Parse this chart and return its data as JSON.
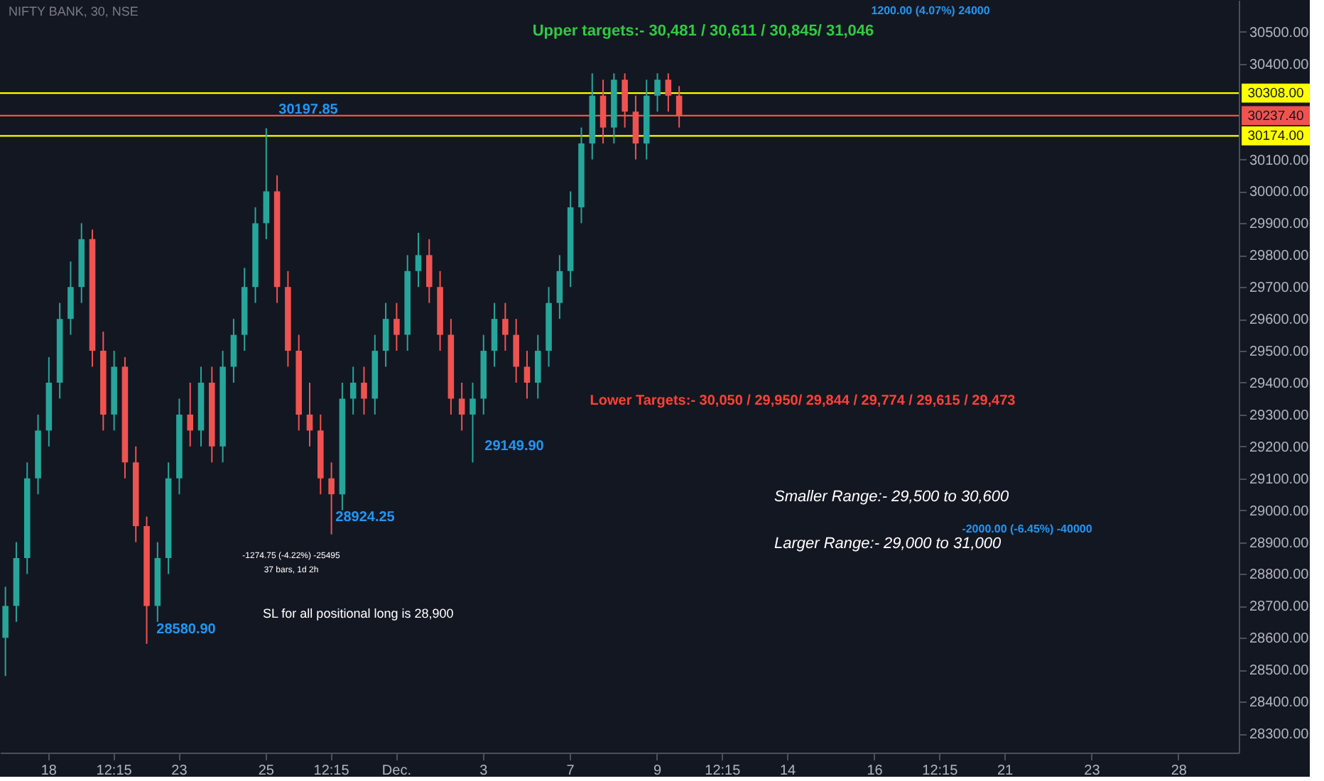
{
  "chart_data": {
    "type": "candlestick",
    "title": "NIFTY BANK, 30, NSE",
    "categories": [
      null,
      null,
      null,
      null,
      "18",
      null,
      null,
      null,
      null,
      null,
      "12:15",
      null,
      null,
      null,
      null,
      null,
      "23",
      null,
      null,
      null,
      null,
      null,
      null,
      null,
      "25",
      null,
      null,
      null,
      null,
      null,
      "12:15",
      null,
      null,
      null,
      null,
      null,
      "Dec.",
      null,
      null,
      null,
      null,
      null,
      null,
      null,
      "3",
      null,
      null,
      null,
      null,
      null,
      null,
      null,
      "7",
      null,
      null,
      null,
      null,
      null,
      null,
      null,
      "9",
      null,
      null,
      null,
      null,
      null,
      "12:15",
      null,
      null,
      null,
      null,
      null,
      "14",
      null,
      null,
      null,
      null,
      null,
      null,
      null,
      "16",
      null,
      null,
      null,
      null,
      null,
      "12:15",
      null,
      null,
      null,
      null,
      null,
      "21",
      null,
      null,
      null,
      null,
      null,
      null,
      null,
      "23",
      null,
      null,
      null,
      null,
      null,
      null,
      null,
      "28",
      null,
      null,
      null,
      null,
      null
    ],
    "ohlc": [
      [
        28600,
        28760,
        28480,
        28700
      ],
      [
        28700,
        28900,
        28650,
        28850
      ],
      [
        28850,
        29150,
        28800,
        29100
      ],
      [
        29100,
        29300,
        29050,
        29250
      ],
      [
        29250,
        29480,
        29200,
        29400
      ],
      [
        29400,
        29650,
        29350,
        29600
      ],
      [
        29600,
        29780,
        29550,
        29700
      ],
      [
        29700,
        29900,
        29650,
        29850
      ],
      [
        29850,
        29880,
        29450,
        29500
      ],
      [
        29500,
        29560,
        29250,
        29300
      ],
      [
        29300,
        29500,
        29250,
        29450
      ],
      [
        29450,
        29480,
        29100,
        29150
      ],
      [
        29150,
        29200,
        28900,
        28950
      ],
      [
        28950,
        28980,
        28580.9,
        28700
      ],
      [
        28700,
        28900,
        28650,
        28850
      ],
      [
        28850,
        29150,
        28800,
        29100
      ],
      [
        29100,
        29350,
        29050,
        29300
      ],
      [
        29300,
        29400,
        29200,
        29250
      ],
      [
        29250,
        29450,
        29200,
        29400
      ],
      [
        29400,
        29450,
        29150,
        29200
      ],
      [
        29200,
        29500,
        29150,
        29450
      ],
      [
        29450,
        29600,
        29400,
        29550
      ],
      [
        29550,
        29760,
        29500,
        29700
      ],
      [
        29700,
        29950,
        29650,
        29900
      ],
      [
        29900,
        30197.85,
        29850,
        30000
      ],
      [
        30000,
        30050,
        29650,
        29700
      ],
      [
        29700,
        29750,
        29450,
        29500
      ],
      [
        29500,
        29550,
        29250,
        29300
      ],
      [
        29300,
        29400,
        29200,
        29250
      ],
      [
        29250,
        29300,
        29050,
        29100
      ],
      [
        29100,
        29150,
        28924.25,
        29050
      ],
      [
        29050,
        29400,
        29000,
        29350
      ],
      [
        29350,
        29450,
        29300,
        29400
      ],
      [
        29400,
        29450,
        29300,
        29350
      ],
      [
        29350,
        29550,
        29300,
        29500
      ],
      [
        29500,
        29650,
        29450,
        29600
      ],
      [
        29600,
        29650,
        29500,
        29550
      ],
      [
        29550,
        29800,
        29500,
        29750
      ],
      [
        29750,
        29870,
        29700,
        29800
      ],
      [
        29800,
        29850,
        29650,
        29700
      ],
      [
        29700,
        29750,
        29500,
        29550
      ],
      [
        29550,
        29600,
        29300,
        29350
      ],
      [
        29350,
        29400,
        29250,
        29300
      ],
      [
        29300,
        29400,
        29149.9,
        29350
      ],
      [
        29350,
        29550,
        29300,
        29500
      ],
      [
        29500,
        29650,
        29450,
        29600
      ],
      [
        29600,
        29650,
        29500,
        29550
      ],
      [
        29550,
        29600,
        29400,
        29450
      ],
      [
        29450,
        29500,
        29350,
        29400
      ],
      [
        29400,
        29550,
        29350,
        29500
      ],
      [
        29500,
        29700,
        29450,
        29650
      ],
      [
        29650,
        29800,
        29600,
        29750
      ],
      [
        29750,
        30000,
        29700,
        29950
      ],
      [
        29950,
        30200,
        29900,
        30150
      ],
      [
        30150,
        30370,
        30100,
        30300
      ],
      [
        30300,
        30350,
        30150,
        30200
      ],
      [
        30200,
        30370,
        30150,
        30350
      ],
      [
        30350,
        30370,
        30200,
        30250
      ],
      [
        30250,
        30300,
        30100,
        30150
      ],
      [
        30150,
        30350,
        30100,
        30300
      ],
      [
        30300,
        30370,
        30250,
        30350
      ],
      [
        30350,
        30370,
        30250,
        30300
      ],
      [
        30300,
        30330,
        30200,
        30237.4
      ],
      null,
      null,
      null,
      null,
      null,
      null,
      null,
      null,
      null,
      null,
      null,
      null,
      null,
      null,
      null,
      null,
      null,
      null,
      null,
      null,
      null,
      null,
      null,
      null,
      null,
      null,
      null,
      null,
      null,
      null,
      null,
      null,
      null,
      null,
      null,
      null,
      null,
      null,
      null,
      null,
      null,
      null,
      null,
      null,
      null,
      null,
      null,
      null,
      null,
      null,
      null
    ],
    "colors": [
      "#26a69a",
      "#26a69a",
      "#26a69a",
      "#26a69a",
      "#26a69a",
      "#26a69a",
      "#26a69a",
      "#26a69a",
      "#ef5350",
      "#ef5350",
      "#26a69a",
      "#ef5350",
      "#ef5350",
      "#ef5350",
      "#26a69a",
      "#26a69a",
      "#26a69a",
      "#ef5350",
      "#26a69a",
      "#ef5350",
      "#26a69a",
      "#26a69a",
      "#26a69a",
      "#26a69a",
      "#26a69a",
      "#ef5350",
      "#ef5350",
      "#ef5350",
      "#ef5350",
      "#ef5350",
      "#ef5350",
      "#26a69a",
      "#26a69a",
      "#ef5350",
      "#26a69a",
      "#26a69a",
      "#ef5350",
      "#26a69a",
      "#26a69a",
      "#ef5350",
      "#ef5350",
      "#ef5350",
      "#ef5350",
      "#26a69a",
      "#26a69a",
      "#26a69a",
      "#ef5350",
      "#ef5350",
      "#ef5350",
      "#26a69a",
      "#26a69a",
      "#26a69a",
      "#26a69a",
      "#26a69a",
      "#26a69a",
      "#ef5350",
      "#26a69a",
      "#ef5350",
      "#ef5350",
      "#26a69a",
      "#26a69a",
      "#ef5350",
      "#ef5350",
      null,
      null,
      null,
      null,
      null,
      null,
      null,
      null,
      null,
      null,
      null,
      null,
      null,
      null,
      null,
      null,
      null,
      null,
      null,
      null,
      null,
      null,
      null,
      null,
      null,
      null,
      null,
      null,
      null,
      null,
      null,
      null,
      null,
      null,
      null,
      null,
      null,
      null,
      null,
      null,
      null,
      null,
      null,
      null,
      null,
      null,
      null,
      null,
      null,
      null,
      null
    ],
    "ylim": [
      28240,
      30600
    ],
    "yticks": [
      {
        "value": 28300,
        "label": "28300.00"
      },
      {
        "value": 28400,
        "label": "28400.00"
      },
      {
        "value": 28500,
        "label": "28500.00"
      },
      {
        "value": 28600,
        "label": "28600.00"
      },
      {
        "value": 28700,
        "label": "28700.00"
      },
      {
        "value": 28800,
        "label": "28800.00"
      },
      {
        "value": 28900,
        "label": "28900.00"
      },
      {
        "value": 29000,
        "label": "29000.00"
      },
      {
        "value": 29100,
        "label": "29100.00"
      },
      {
        "value": 29200,
        "label": "29200.00"
      },
      {
        "value": 29300,
        "label": "29300.00"
      },
      {
        "value": 29400,
        "label": "29400.00"
      },
      {
        "value": 29500,
        "label": "29500.00"
      },
      {
        "value": 29600,
        "label": "29600.00"
      },
      {
        "value": 29700,
        "label": "29700.00"
      },
      {
        "value": 29800,
        "label": "29800.00"
      },
      {
        "value": 29900,
        "label": "29900.00"
      },
      {
        "value": 30000,
        "label": "30000.00"
      },
      {
        "value": 30100,
        "label": "30100.00"
      },
      {
        "value": 30400,
        "label": "30400.00"
      },
      {
        "value": 30500,
        "label": "30500.00"
      }
    ],
    "ref_lines": [
      {
        "axis": "y",
        "value": 30308,
        "label": "30308.00",
        "color": "#ffff00"
      },
      {
        "axis": "y",
        "value": 30174,
        "label": "30174.00",
        "color": "#ffff00"
      },
      {
        "axis": "y",
        "value": 30237.4,
        "label": "30237.40",
        "color": "#ef5350"
      }
    ],
    "annotations": [
      "30197.85",
      "28580.90",
      "28924.25",
      "29149.90",
      "Upper targets:- 30,481 / 30,611  / 30,845/ 31,046",
      "Lower Targets:- 30,050 / 29,950/ 29,844 / 29,774 / 29,615 / 29,473",
      "Smaller Range:- 29,500 to 30,600",
      "Larger Range:- 29,000 to 31,000",
      "SL for all positional long is 28,900",
      "-1274.75 (-4.22%) -25495",
      "37 bars, 1d 2h",
      "1200.00 (4.07%) 24000",
      "-2000.00 (-6.45%) -40000"
    ],
    "grid": false
  }
}
